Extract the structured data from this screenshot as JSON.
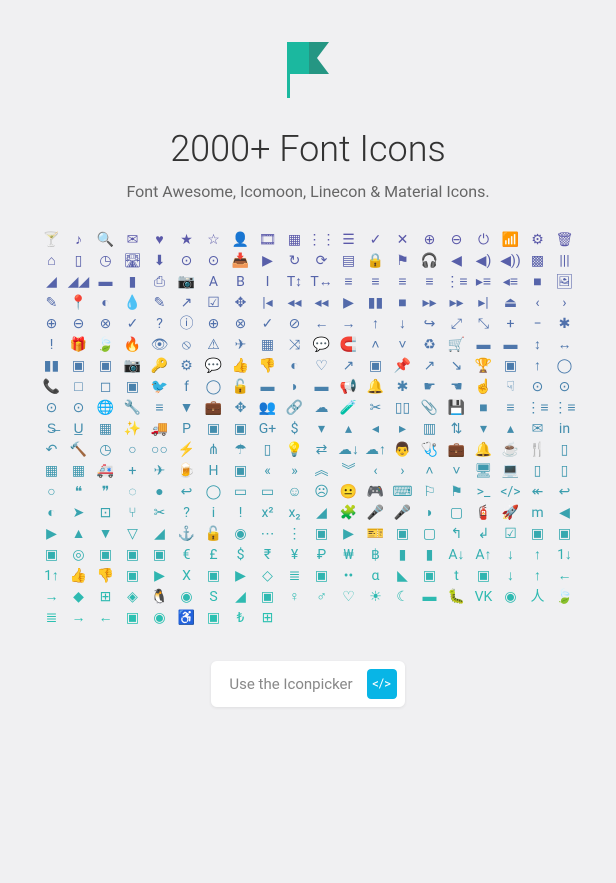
{
  "title": "2000+ Font Icons",
  "subtitle": "Font Awesome, Icomoon, Linecon & Material Icons.",
  "cta_label": "Use the Iconpicker",
  "cta_icon": "code-icon",
  "logo": {
    "color_left": "#1bb89f",
    "color_right": "#259683"
  },
  "gradient": {
    "start": "#5b59a9",
    "end": "#2bc0b1",
    "rows": 19
  },
  "icons_per_row": 20,
  "icon_rows": [
    [
      "glass",
      "music",
      "search",
      "envelope",
      "heart",
      "star",
      "star-o",
      "user",
      "film",
      "th-large",
      "th",
      "th-list",
      "check",
      "times",
      "search-plus",
      "search-minus",
      "power-off",
      "signal",
      "cog",
      "trash"
    ],
    [
      "home",
      "file-o",
      "clock",
      "road",
      "download",
      "arrow-circle-down",
      "arrow-circle-up",
      "inbox",
      "play-circle",
      "repeat",
      "refresh",
      "list-alt",
      "lock",
      "flag",
      "headphones",
      "volume-off",
      "volume-down",
      "volume-up",
      "qrcode",
      "barcode"
    ],
    [
      "tag",
      "tags",
      "book",
      "bookmark",
      "print",
      "camera",
      "font",
      "bold",
      "italic",
      "text-height",
      "text-width",
      "align-left",
      "align-center",
      "align-right",
      "align-justify",
      "list",
      "indent-right",
      "indent-left",
      "video-camera",
      "image"
    ],
    [
      "pencil",
      "map-marker",
      "adjust",
      "tint",
      "edit",
      "share-square",
      "check-square",
      "arrows",
      "step-backward",
      "fast-backward",
      "backward",
      "play",
      "pause",
      "stop",
      "forward",
      "fast-forward",
      "step-forward",
      "eject",
      "chevron-left",
      "chevron-right"
    ],
    [
      "plus-circle",
      "minus-circle",
      "times-circle",
      "check-circle",
      "question-circle",
      "info-circle",
      "crosshairs",
      "times-circle-o",
      "check-circle-o",
      "ban",
      "arrow-left",
      "arrow-right",
      "arrow-up",
      "arrow-down",
      "share",
      "expand",
      "compress",
      "plus",
      "minus",
      "asterisk"
    ],
    [
      "exclamation-circle",
      "gift",
      "leaf",
      "fire",
      "eye",
      "eye-slash",
      "warning",
      "plane",
      "calendar",
      "random",
      "comment",
      "magnet",
      "chevron-up",
      "chevron-down",
      "retweet",
      "shopping-cart",
      "folder",
      "folder-open",
      "arrows-v",
      "arrows-h"
    ],
    [
      "bar-chart",
      "twitter-square",
      "facebook-square",
      "camera-retro",
      "key",
      "cogs",
      "comments",
      "thumbs-up",
      "thumbs-down",
      "star-half",
      "heart-o",
      "sign-out",
      "linkedin-square",
      "thumb-tack",
      "external-link",
      "sign-in",
      "trophy",
      "github-square",
      "upload",
      "lemon"
    ],
    [
      "phone",
      "square-o",
      "bookmark-o",
      "phone-square",
      "twitter",
      "facebook",
      "github",
      "unlock",
      "credit-card",
      "rss",
      "hdd",
      "bullhorn",
      "bell",
      "certificate",
      "hand-right",
      "hand-left",
      "hand-up",
      "hand-down",
      "circle-arrow-left",
      "circle-arrow-right"
    ],
    [
      "circle-arrow-up",
      "circle-arrow-down",
      "globe",
      "wrench",
      "tasks",
      "filter",
      "briefcase",
      "arrows-alt",
      "group",
      "link",
      "cloud",
      "flask",
      "scissors",
      "files",
      "paperclip",
      "floppy",
      "square",
      "bars",
      "list-ul",
      "list-ol"
    ],
    [
      "strikethrough",
      "underline",
      "table",
      "magic",
      "truck",
      "pinterest",
      "pinterest-square",
      "google-plus-square",
      "google-plus",
      "money",
      "caret-down",
      "caret-up",
      "caret-left",
      "caret-right",
      "columns",
      "sort",
      "sort-down",
      "sort-up",
      "envelope-alt",
      "linkedin"
    ],
    [
      "undo",
      "gavel",
      "dashboard",
      "comment-o",
      "comments-o",
      "bolt",
      "sitemap",
      "umbrella",
      "clipboard",
      "lightbulb",
      "exchange",
      "cloud-download",
      "cloud-upload",
      "user-md",
      "stethoscope",
      "suitcase",
      "bell-o",
      "coffee",
      "cutlery",
      "file-text"
    ],
    [
      "building",
      "hospital",
      "ambulance",
      "medkit",
      "fighter-jet",
      "beer",
      "h-square",
      "plus-square",
      "angle-double-left",
      "angle-double-right",
      "angle-double-up",
      "angle-double-down",
      "angle-left",
      "angle-right",
      "angle-up",
      "angle-down",
      "desktop",
      "laptop",
      "tablet",
      "mobile"
    ],
    [
      "circle-o",
      "quote-left",
      "quote-right",
      "spinner",
      "circle",
      "reply",
      "github-alt",
      "folder-o",
      "folder-open-o",
      "smile",
      "frown",
      "meh",
      "gamepad",
      "keyboard",
      "flag-o",
      "flag-checkered",
      "terminal",
      "code",
      "reply-all",
      "mail-reply-all"
    ],
    [
      "star-half-o",
      "location-arrow",
      "crop",
      "code-fork",
      "chain-broken",
      "question",
      "info",
      "exclamation",
      "superscript",
      "subscript",
      "eraser",
      "puzzle",
      "microphone",
      "microphone-slash",
      "shield",
      "calendar-o",
      "fire-extinguisher",
      "rocket",
      "maxcdn",
      "chevron-circle-left"
    ],
    [
      "chevron-circle-right",
      "chevron-circle-up",
      "chevron-circle-down",
      "html5",
      "css3",
      "anchor",
      "unlock-alt",
      "bullseye",
      "ellipsis-h",
      "ellipsis-v",
      "rss-square",
      "play-circle-alt",
      "ticket",
      "minus-square",
      "minus-square-o",
      "level-up",
      "level-down",
      "check-square-alt",
      "pencil-square",
      "external-link-square"
    ],
    [
      "share-square-alt",
      "compass",
      "caret-square-down",
      "caret-square-up",
      "caret-square-right",
      "eur",
      "gbp",
      "usd",
      "inr",
      "jpy",
      "rub",
      "krw",
      "btc",
      "file",
      "file-text-alt",
      "sort-alpha-asc",
      "sort-alpha-desc",
      "sort-amount-asc",
      "sort-amount-desc",
      "sort-numeric-asc"
    ],
    [
      "sort-numeric-desc",
      "thumbs-up-alt",
      "thumbs-down-alt",
      "youtube-square",
      "youtube",
      "xing",
      "xing-square",
      "youtube-play",
      "dropbox",
      "stack-overflow",
      "instagram",
      "flickr",
      "adn",
      "bitbucket",
      "bitbucket-square",
      "tumblr",
      "tumblr-square",
      "long-arrow-down",
      "long-arrow-up",
      "long-arrow-left"
    ],
    [
      "long-arrow-right",
      "apple",
      "windows",
      "android",
      "linux",
      "dribbble",
      "skype",
      "foursquare",
      "trello",
      "female",
      "male",
      "gratipay",
      "sun",
      "moon",
      "archive",
      "bug",
      "vk",
      "weibo",
      "renren",
      "pagelines"
    ],
    [
      "stack-exchange",
      "arrow-circle-o-right",
      "arrow-circle-o-left",
      "caret-square-left",
      "dot-circle",
      "wheelchair",
      "vimeo-square",
      "try",
      "plus-square-o",
      "",
      "",
      "",
      "",
      "",
      "",
      "",
      "",
      "",
      "",
      ""
    ]
  ],
  "glyph_map": {
    "glass": "🍸",
    "music": "♪",
    "search": "🔍",
    "envelope": "✉",
    "heart": "♥",
    "star": "★",
    "star-o": "☆",
    "user": "👤",
    "film": "🎞",
    "th-large": "▦",
    "th": "⋮⋮",
    "th-list": "☰",
    "check": "✓",
    "times": "✕",
    "search-plus": "⊕",
    "search-minus": "⊖",
    "power-off": "⏻",
    "signal": "📶",
    "cog": "⚙",
    "trash": "🗑",
    "home": "⌂",
    "file-o": "▯",
    "clock": "◷",
    "road": "🛣",
    "download": "⬇",
    "arrow-circle-down": "⊙",
    "arrow-circle-up": "⊙",
    "inbox": "📥",
    "play-circle": "▶",
    "repeat": "↻",
    "refresh": "⟳",
    "list-alt": "▤",
    "lock": "🔒",
    "flag": "⚑",
    "headphones": "🎧",
    "volume-off": "◀",
    "volume-down": "◀)",
    "volume-up": "◀))",
    "qrcode": "▩",
    "barcode": "|||",
    "tag": "◢",
    "tags": "◢◢",
    "book": "▬",
    "bookmark": "▮",
    "print": "⎙",
    "camera": "📷",
    "font": "A",
    "bold": "B",
    "italic": "I",
    "text-height": "T↕",
    "text-width": "T↔",
    "align-left": "≡",
    "align-center": "≡",
    "align-right": "≡",
    "align-justify": "≡",
    "list": "⋮≡",
    "indent-right": "▸≡",
    "indent-left": "◂≡",
    "video-camera": "■",
    "image": "🖼",
    "pencil": "✎",
    "map-marker": "📍",
    "adjust": "◐",
    "tint": "💧",
    "edit": "✎",
    "share-square": "↗",
    "check-square": "☑",
    "arrows": "✥",
    "step-backward": "|◂",
    "fast-backward": "◂◂",
    "backward": "◂◂",
    "play": "▶",
    "pause": "▮▮",
    "stop": "■",
    "forward": "▸▸",
    "fast-forward": "▸▸",
    "step-forward": "▸|",
    "eject": "⏏",
    "chevron-left": "‹",
    "chevron-right": "›",
    "plus-circle": "⊕",
    "minus-circle": "⊖",
    "times-circle": "⊗",
    "check-circle": "✓",
    "question-circle": "?",
    "info-circle": "ⓘ",
    "crosshairs": "⊕",
    "times-circle-o": "⊗",
    "check-circle-o": "✓",
    "ban": "⊘",
    "arrow-left": "←",
    "arrow-right": "→",
    "arrow-up": "↑",
    "arrow-down": "↓",
    "share": "↪",
    "expand": "⤢",
    "compress": "⤡",
    "plus": "+",
    "minus": "−",
    "asterisk": "✱",
    "exclamation-circle": "!",
    "gift": "🎁",
    "leaf": "🍃",
    "fire": "🔥",
    "eye": "👁",
    "eye-slash": "⦸",
    "warning": "⚠",
    "plane": "✈",
    "calendar": "▦",
    "random": "⤨",
    "comment": "💬",
    "magnet": "🧲",
    "chevron-up": "˄",
    "chevron-down": "˅",
    "retweet": "♻",
    "shopping-cart": "🛒",
    "folder": "▬",
    "folder-open": "▬",
    "arrows-v": "↕",
    "arrows-h": "↔",
    "bar-chart": "▮▮",
    "twitter-square": "▣",
    "facebook-square": "▣",
    "camera-retro": "📷",
    "key": "🔑",
    "cogs": "⚙",
    "comments": "💬",
    "thumbs-up": "👍",
    "thumbs-down": "👎",
    "star-half": "◐",
    "heart-o": "♡",
    "sign-out": "↗",
    "linkedin-square": "▣",
    "thumb-tack": "📌",
    "external-link": "↗",
    "sign-in": "↘",
    "trophy": "🏆",
    "github-square": "▣",
    "upload": "↑",
    "lemon": "◯",
    "phone": "📞",
    "square-o": "□",
    "bookmark-o": "◻",
    "phone-square": "▣",
    "twitter": "🐦",
    "facebook": "f",
    "github": "◯",
    "unlock": "🔓",
    "credit-card": "▬",
    "rss": "◗",
    "hdd": "▬",
    "bullhorn": "📢",
    "bell": "🔔",
    "certificate": "✱",
    "hand-right": "☛",
    "hand-left": "☚",
    "hand-up": "☝",
    "hand-down": "☟",
    "circle-arrow-left": "⊙",
    "circle-arrow-right": "⊙",
    "circle-arrow-up": "⊙",
    "circle-arrow-down": "⊙",
    "globe": "🌐",
    "wrench": "🔧",
    "tasks": "≡",
    "filter": "▼",
    "briefcase": "💼",
    "arrows-alt": "✥",
    "group": "👥",
    "link": "🔗",
    "cloud": "☁",
    "flask": "🧪",
    "scissors": "✂",
    "files": "▯▯",
    "paperclip": "📎",
    "floppy": "💾",
    "square": "■",
    "bars": "≡",
    "list-ul": "⋮≡",
    "list-ol": "⋮≡",
    "strikethrough": "S̶",
    "underline": "U̲",
    "table": "▦",
    "magic": "✨",
    "truck": "🚚",
    "pinterest": "P",
    "pinterest-square": "▣",
    "google-plus-square": "▣",
    "google-plus": "G+",
    "money": "$",
    "caret-down": "▾",
    "caret-up": "▴",
    "caret-left": "◂",
    "caret-right": "▸",
    "columns": "▥",
    "sort": "⇅",
    "sort-down": "▾",
    "sort-up": "▴",
    "envelope-alt": "✉",
    "linkedin": "in",
    "undo": "↶",
    "gavel": "🔨",
    "dashboard": "◷",
    "comment-o": "○",
    "comments-o": "○○",
    "bolt": "⚡",
    "sitemap": "⋔",
    "umbrella": "☂",
    "clipboard": "▯",
    "lightbulb": "💡",
    "exchange": "⇄",
    "cloud-download": "☁↓",
    "cloud-upload": "☁↑",
    "user-md": "👨",
    "stethoscope": "🩺",
    "suitcase": "💼",
    "bell-o": "🔔",
    "coffee": "☕",
    "cutlery": "🍴",
    "file-text": "▯",
    "building": "▦",
    "hospital": "▦",
    "ambulance": "🚑",
    "medkit": "+",
    "fighter-jet": "✈",
    "beer": "🍺",
    "h-square": "H",
    "plus-square": "▣",
    "angle-double-left": "«",
    "angle-double-right": "»",
    "angle-double-up": "︽",
    "angle-double-down": "︾",
    "angle-left": "‹",
    "angle-right": "›",
    "angle-up": "˄",
    "angle-down": "˅",
    "desktop": "🖥",
    "laptop": "💻",
    "tablet": "▯",
    "mobile": "▯",
    "circle-o": "○",
    "quote-left": "❝",
    "quote-right": "❞",
    "spinner": "◌",
    "circle": "●",
    "reply": "↩",
    "github-alt": "◯",
    "folder-o": "▭",
    "folder-open-o": "▭",
    "smile": "☺",
    "frown": "☹",
    "meh": "😐",
    "gamepad": "🎮",
    "keyboard": "⌨",
    "flag-o": "⚐",
    "flag-checkered": "⚑",
    "terminal": ">_",
    "code": "</>",
    "reply-all": "↞",
    "mail-reply-all": "↩",
    "star-half-o": "◐",
    "location-arrow": "➤",
    "crop": "⊡",
    "code-fork": "⑂",
    "chain-broken": "✂",
    "question": "?",
    "info": "i",
    "exclamation": "!",
    "superscript": "x²",
    "subscript": "x₂",
    "eraser": "◢",
    "puzzle": "🧩",
    "microphone": "🎤",
    "microphone-slash": "🎤",
    "shield": "◗",
    "calendar-o": "▢",
    "fire-extinguisher": "🧯",
    "rocket": "🚀",
    "maxcdn": "m",
    "chevron-circle-left": "◀",
    "chevron-circle-right": "▶",
    "chevron-circle-up": "▲",
    "chevron-circle-down": "▼",
    "html5": "▽",
    "css3": "◢",
    "anchor": "⚓",
    "unlock-alt": "🔓",
    "bullseye": "◉",
    "ellipsis-h": "⋯",
    "ellipsis-v": "⋮",
    "rss-square": "▣",
    "play-circle-alt": "▶",
    "ticket": "🎫",
    "minus-square": "▣",
    "minus-square-o": "▢",
    "level-up": "↰",
    "level-down": "↲",
    "check-square-alt": "☑",
    "pencil-square": "▣",
    "external-link-square": "▣",
    "share-square-alt": "▣",
    "compass": "◎",
    "caret-square-down": "▣",
    "caret-square-up": "▣",
    "caret-square-right": "▣",
    "eur": "€",
    "gbp": "£",
    "usd": "$",
    "inr": "₹",
    "jpy": "¥",
    "rub": "₽",
    "krw": "₩",
    "btc": "฿",
    "file": "▮",
    "file-text-alt": "▮",
    "sort-alpha-asc": "A↓",
    "sort-alpha-desc": "A↑",
    "sort-amount-asc": "↓",
    "sort-amount-desc": "↑",
    "sort-numeric-asc": "1↓",
    "sort-numeric-desc": "1↑",
    "thumbs-up-alt": "👍",
    "thumbs-down-alt": "👎",
    "youtube-square": "▣",
    "youtube": "▶",
    "xing": "X",
    "xing-square": "▣",
    "youtube-play": "▶",
    "dropbox": "◇",
    "stack-overflow": "≣",
    "instagram": "▣",
    "flickr": "••",
    "adn": "α",
    "bitbucket": "◣",
    "bitbucket-square": "▣",
    "tumblr": "t",
    "tumblr-square": "▣",
    "long-arrow-down": "↓",
    "long-arrow-up": "↑",
    "long-arrow-left": "←",
    "long-arrow-right": "→",
    "apple": "",
    "windows": "⊞",
    "android": "◈",
    "linux": "🐧",
    "dribbble": "◉",
    "skype": "S",
    "foursquare": "◢",
    "trello": "▣",
    "female": "♀",
    "male": "♂",
    "gratipay": "♡",
    "sun": "☀",
    "moon": "☾",
    "archive": "▬",
    "bug": "🐛",
    "vk": "VK",
    "weibo": "◉",
    "renren": "人",
    "pagelines": "🍃",
    "stack-exchange": "≣",
    "arrow-circle-o-right": "→",
    "arrow-circle-o-left": "←",
    "caret-square-left": "▣",
    "dot-circle": "◉",
    "wheelchair": "♿",
    "vimeo-square": "▣",
    "try": "₺",
    "plus-square-o": "⊞"
  }
}
